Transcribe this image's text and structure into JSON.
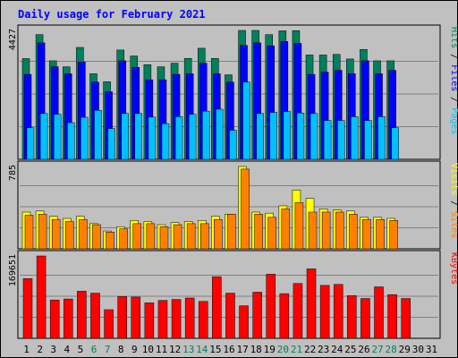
{
  "title": "Daily usage for February 2021",
  "colors": {
    "background": "#c0c0c0",
    "title": "#0000ff",
    "hits": "#00805c",
    "files": "#0000ff",
    "pages": "#00c0ff",
    "visits": "#ffff00",
    "sites": "#ff8000",
    "kbytes": "#ff0000",
    "weekend_label": "#00805c",
    "weekday_label": "#000000"
  },
  "chart_data": [
    {
      "type": "bar",
      "panel": "hits_files_pages",
      "ymax_label": "4427",
      "ylim": [
        0,
        4427
      ],
      "legend": [
        "Pages",
        "Files",
        "Hits"
      ],
      "categories": [
        "1",
        "2",
        "3",
        "4",
        "5",
        "6",
        "7",
        "8",
        "9",
        "10",
        "11",
        "12",
        "13",
        "14",
        "15",
        "16",
        "17",
        "18",
        "19",
        "20",
        "21",
        "22",
        "23",
        "24",
        "25",
        "26",
        "27",
        "28",
        "29",
        "30",
        "31"
      ],
      "series": [
        {
          "name": "Hits",
          "values": [
            3460,
            4283,
            3384,
            3179,
            3843,
            2938,
            2664,
            3754,
            3549,
            3251,
            3179,
            3302,
            3466,
            3815,
            3466,
            2903,
            4427,
            4427,
            4283,
            4413,
            4420,
            3583,
            3583,
            3603,
            3446,
            3775,
            3384,
            3384,
            null,
            null,
            null
          ]
        },
        {
          "name": "Files",
          "values": [
            2917,
            4000,
            3179,
            2938,
            3343,
            2650,
            2322,
            3384,
            3158,
            2733,
            2733,
            2917,
            2938,
            3302,
            2938,
            2650,
            3912,
            4002,
            3897,
            4047,
            3980,
            2917,
            2994,
            3055,
            2938,
            3384,
            2938,
            3055,
            null,
            null,
            null
          ]
        },
        {
          "name": "Pages",
          "values": [
            1085,
            1574,
            1547,
            1260,
            1444,
            1684,
            1056,
            1574,
            1574,
            1452,
            1225,
            1465,
            1547,
            1656,
            1722,
            1000,
            2652,
            1574,
            1612,
            1644,
            1592,
            1574,
            1335,
            1335,
            1465,
            1335,
            1465,
            1085,
            null,
            null,
            null
          ]
        }
      ]
    },
    {
      "type": "bar",
      "panel": "visits_sites",
      "ymax_label": "785",
      "ylim": [
        0,
        785
      ],
      "legend": [
        "Sites",
        "Visits"
      ],
      "categories": [
        "1",
        "2",
        "3",
        "4",
        "5",
        "6",
        "7",
        "8",
        "9",
        "10",
        "11",
        "12",
        "13",
        "14",
        "15",
        "16",
        "17",
        "18",
        "19",
        "20",
        "21",
        "22",
        "23",
        "24",
        "25",
        "26",
        "27",
        "28",
        "29",
        "30",
        "31"
      ],
      "series": [
        {
          "name": "Visits",
          "values": [
            350,
            360,
            310,
            290,
            310,
            240,
            170,
            210,
            270,
            260,
            230,
            250,
            260,
            270,
            310,
            330,
            785,
            350,
            340,
            410,
            560,
            480,
            380,
            370,
            360,
            300,
            300,
            290,
            null,
            null,
            null
          ]
        },
        {
          "name": "Sites",
          "values": [
            320,
            330,
            280,
            260,
            280,
            230,
            160,
            190,
            240,
            240,
            210,
            230,
            240,
            240,
            280,
            330,
            760,
            330,
            300,
            380,
            440,
            350,
            350,
            350,
            330,
            280,
            280,
            270,
            null,
            null,
            null
          ]
        }
      ]
    },
    {
      "type": "bar",
      "panel": "kbytes",
      "ymax_label": "169651",
      "ylim": [
        0,
        169651
      ],
      "legend": [
        "KBytes"
      ],
      "categories": [
        "1",
        "2",
        "3",
        "4",
        "5",
        "6",
        "7",
        "8",
        "9",
        "10",
        "11",
        "12",
        "13",
        "14",
        "15",
        "16",
        "17",
        "18",
        "19",
        "20",
        "21",
        "22",
        "23",
        "24",
        "25",
        "26",
        "27",
        "28",
        "29",
        "30",
        "31"
      ],
      "series": [
        {
          "name": "KBytes",
          "values": [
            123000,
            169651,
            79000,
            81000,
            97000,
            93000,
            59000,
            86000,
            85000,
            73000,
            78000,
            80000,
            83000,
            76000,
            127000,
            93000,
            67000,
            95000,
            132000,
            92000,
            113000,
            143000,
            109000,
            111000,
            88000,
            82000,
            106000,
            90000,
            82000,
            null,
            null
          ]
        }
      ]
    }
  ],
  "weekend_days": [
    6,
    7,
    13,
    14,
    20,
    21,
    27,
    28
  ]
}
